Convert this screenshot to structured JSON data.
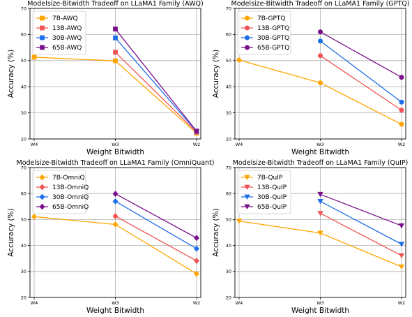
{
  "chart_data": [
    {
      "type": "line",
      "title": "Modelsize-Bitwidth Tradeoff on LLaMA1 Family (AWQ)",
      "xlabel": "Weight Bitwidth",
      "ylabel": "Accuracy (%)",
      "categories": [
        "W4",
        "W3",
        "W2"
      ],
      "ylim": [
        20,
        70
      ],
      "yticks": [
        "20",
        "30",
        "40",
        "50",
        "60",
        "70"
      ],
      "grid": true,
      "legend_position": "top-left",
      "marker": "square",
      "series": [
        {
          "name": "7B-AWQ",
          "color": "#ffa500",
          "values": [
            51.3,
            49.9,
            22.2
          ]
        },
        {
          "name": "13B-AWQ",
          "color": "#f05454",
          "values": [
            null,
            53.2,
            22.6
          ]
        },
        {
          "name": "30B-AWQ",
          "color": "#1e6ee8",
          "values": [
            null,
            58.7,
            22.9
          ]
        },
        {
          "name": "65B-AWQ",
          "color": "#7a0f8a",
          "values": [
            null,
            62.1,
            23.0
          ]
        }
      ]
    },
    {
      "type": "line",
      "title": "Modelsize-Bitwidth Tradeoff on LLaMA1 Family (GPTQ)",
      "xlabel": "Weight Bitwidth",
      "ylabel": "Accuracy (%)",
      "categories": [
        "W4",
        "W3",
        "W2"
      ],
      "ylim": [
        20,
        70
      ],
      "yticks": [
        "20",
        "30",
        "40",
        "50",
        "60",
        "70"
      ],
      "grid": true,
      "legend_position": "top-left",
      "marker": "circle",
      "series": [
        {
          "name": "7B-GPTQ",
          "color": "#ffa500",
          "values": [
            50.2,
            41.5,
            25.6
          ]
        },
        {
          "name": "13B-GPTQ",
          "color": "#f05454",
          "values": [
            null,
            51.9,
            31.0
          ]
        },
        {
          "name": "30B-GPTQ",
          "color": "#1e6ee8",
          "values": [
            null,
            57.5,
            34.1
          ]
        },
        {
          "name": "65B-GPTQ",
          "color": "#7a0f8a",
          "values": [
            null,
            61.0,
            43.6
          ]
        }
      ]
    },
    {
      "type": "line",
      "title": "Modelsize-Bitwidth Tradeoff on LLaMA1 Family (OmniQuant)",
      "xlabel": "Weight Bitwidth",
      "ylabel": "Accuracy (%)",
      "categories": [
        "W4",
        "W3",
        "W2"
      ],
      "ylim": [
        20,
        70
      ],
      "yticks": [
        "20",
        "30",
        "40",
        "50",
        "60",
        "70"
      ],
      "grid": true,
      "legend_position": "top-left",
      "marker": "diamond",
      "series": [
        {
          "name": "7B-OmniQ",
          "color": "#ffa500",
          "values": [
            51.1,
            48.1,
            29.1
          ]
        },
        {
          "name": "13B-OmniQ",
          "color": "#f05454",
          "values": [
            null,
            51.3,
            34.1
          ]
        },
        {
          "name": "30B-OmniQ",
          "color": "#1e6ee8",
          "values": [
            null,
            57.0,
            38.8
          ]
        },
        {
          "name": "65B-OmniQ",
          "color": "#7a0f8a",
          "values": [
            null,
            59.9,
            42.9
          ]
        }
      ]
    },
    {
      "type": "line",
      "title": "Modelsize-Bitwidth Tradeoff on LLaMA1 Family (QuIP)",
      "xlabel": "Weight Bitwidth",
      "ylabel": "Accuracy (%)",
      "categories": [
        "W4",
        "W3",
        "W2"
      ],
      "ylim": [
        20,
        70
      ],
      "yticks": [
        "20",
        "30",
        "40",
        "50",
        "60",
        "70"
      ],
      "grid": true,
      "legend_position": "top-left",
      "marker": "triangle-down",
      "series": [
        {
          "name": "7B-QuIP",
          "color": "#ffa500",
          "values": [
            49.4,
            44.8,
            31.8
          ]
        },
        {
          "name": "13B-QuIP",
          "color": "#f05454",
          "values": [
            null,
            52.4,
            36.1
          ]
        },
        {
          "name": "30B-QuIP",
          "color": "#1e6ee8",
          "values": [
            null,
            57.0,
            40.5
          ]
        },
        {
          "name": "65B-QuIP",
          "color": "#7a0f8a",
          "values": [
            null,
            59.7,
            47.6
          ]
        }
      ]
    }
  ]
}
